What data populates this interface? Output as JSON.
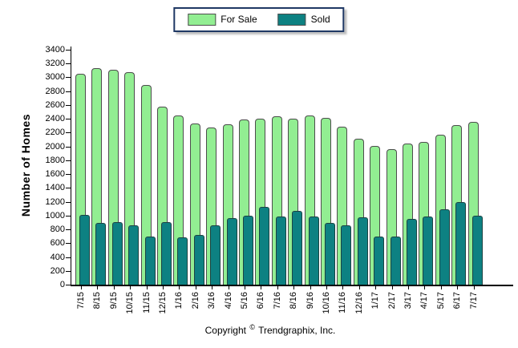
{
  "legend": {
    "items": [
      {
        "label": "For Sale",
        "color": "#92ee92"
      },
      {
        "label": "Sold",
        "color": "#0d8182"
      }
    ]
  },
  "y_axis": {
    "title": "Number of Homes",
    "min": 0,
    "max": 3400,
    "step": 200,
    "ticks": [
      "3400",
      "3200",
      "3000",
      "2800",
      "2600",
      "2400",
      "2200",
      "2000",
      "1800",
      "1600",
      "1400",
      "1200",
      "1000",
      "800",
      "600",
      "400",
      "200",
      "0"
    ]
  },
  "footer": {
    "copyright_prefix": "Copyright",
    "copyright_symbol": "©",
    "copyright_company": "Trendgraphix, Inc."
  },
  "chart_data": {
    "type": "bar",
    "title": "",
    "xlabel": "",
    "ylabel": "Number of Homes",
    "ylim": [
      0,
      3400
    ],
    "grid": false,
    "legend_position": "top-center",
    "categories": [
      "7/15",
      "8/15",
      "9/15",
      "10/15",
      "11/15",
      "12/15",
      "1/16",
      "2/16",
      "3/16",
      "4/16",
      "5/16",
      "6/16",
      "7/16",
      "8/16",
      "9/16",
      "10/16",
      "11/16",
      "12/16",
      "1/17",
      "2/17",
      "3/17",
      "4/17",
      "5/17",
      "6/17",
      "7/17"
    ],
    "series": [
      {
        "name": "For Sale",
        "color": "#92ee92",
        "values": [
          3050,
          3130,
          3110,
          3080,
          2890,
          2580,
          2450,
          2330,
          2270,
          2320,
          2390,
          2400,
          2440,
          2400,
          2450,
          2410,
          2290,
          2110,
          2010,
          1960,
          2040,
          2060,
          2170,
          2310,
          2360
        ]
      },
      {
        "name": "Sold",
        "color": "#0d8182",
        "values": [
          1010,
          890,
          900,
          860,
          700,
          900,
          690,
          720,
          860,
          960,
          1000,
          1130,
          990,
          1070,
          990,
          890,
          860,
          980,
          700,
          700,
          950,
          990,
          1090,
          1200,
          1000
        ]
      }
    ]
  }
}
